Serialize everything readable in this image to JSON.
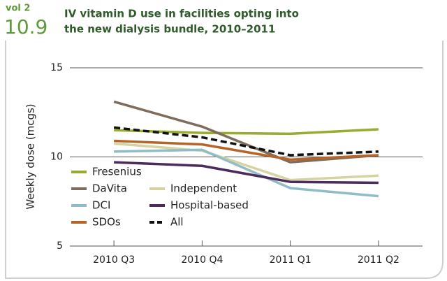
{
  "header": {
    "volume": "vol 2",
    "figure": "10.9"
  },
  "chart_data": {
    "type": "line",
    "title": [
      "IV vitamin D use in facilities opting into",
      "the new dialysis bundle, 2010–2011"
    ],
    "ylabel": "Weekly dose (mcgs)",
    "categories": [
      "2010 Q3",
      "2010 Q4",
      "2011 Q1",
      "2011 Q2"
    ],
    "ylim": [
      5,
      15
    ],
    "yticks": [
      5,
      10,
      15
    ],
    "grid": true,
    "legend": "lower left",
    "series": [
      {
        "name": "Fresenius",
        "color": "#9aab2f",
        "values": [
          11.5,
          11.35,
          11.3,
          11.55
        ]
      },
      {
        "name": "DaVita",
        "color": "#7e6c5c",
        "values": [
          13.1,
          11.7,
          9.7,
          10.1
        ]
      },
      {
        "name": "Independent",
        "color": "#d5d3a2",
        "values": [
          10.75,
          10.35,
          8.7,
          8.95
        ]
      },
      {
        "name": "DCI",
        "color": "#8fbcc6",
        "values": [
          10.3,
          10.4,
          8.25,
          7.8
        ]
      },
      {
        "name": "Hospital-based",
        "color": "#4b2a5c",
        "values": [
          9.7,
          9.5,
          8.6,
          8.55
        ]
      },
      {
        "name": "SDOs",
        "color": "#b5652a",
        "values": [
          10.9,
          10.7,
          9.85,
          10.1
        ]
      },
      {
        "name": "All",
        "color": "#111111",
        "line_style": "dashed",
        "values": [
          11.65,
          11.1,
          10.1,
          10.3
        ]
      }
    ]
  }
}
